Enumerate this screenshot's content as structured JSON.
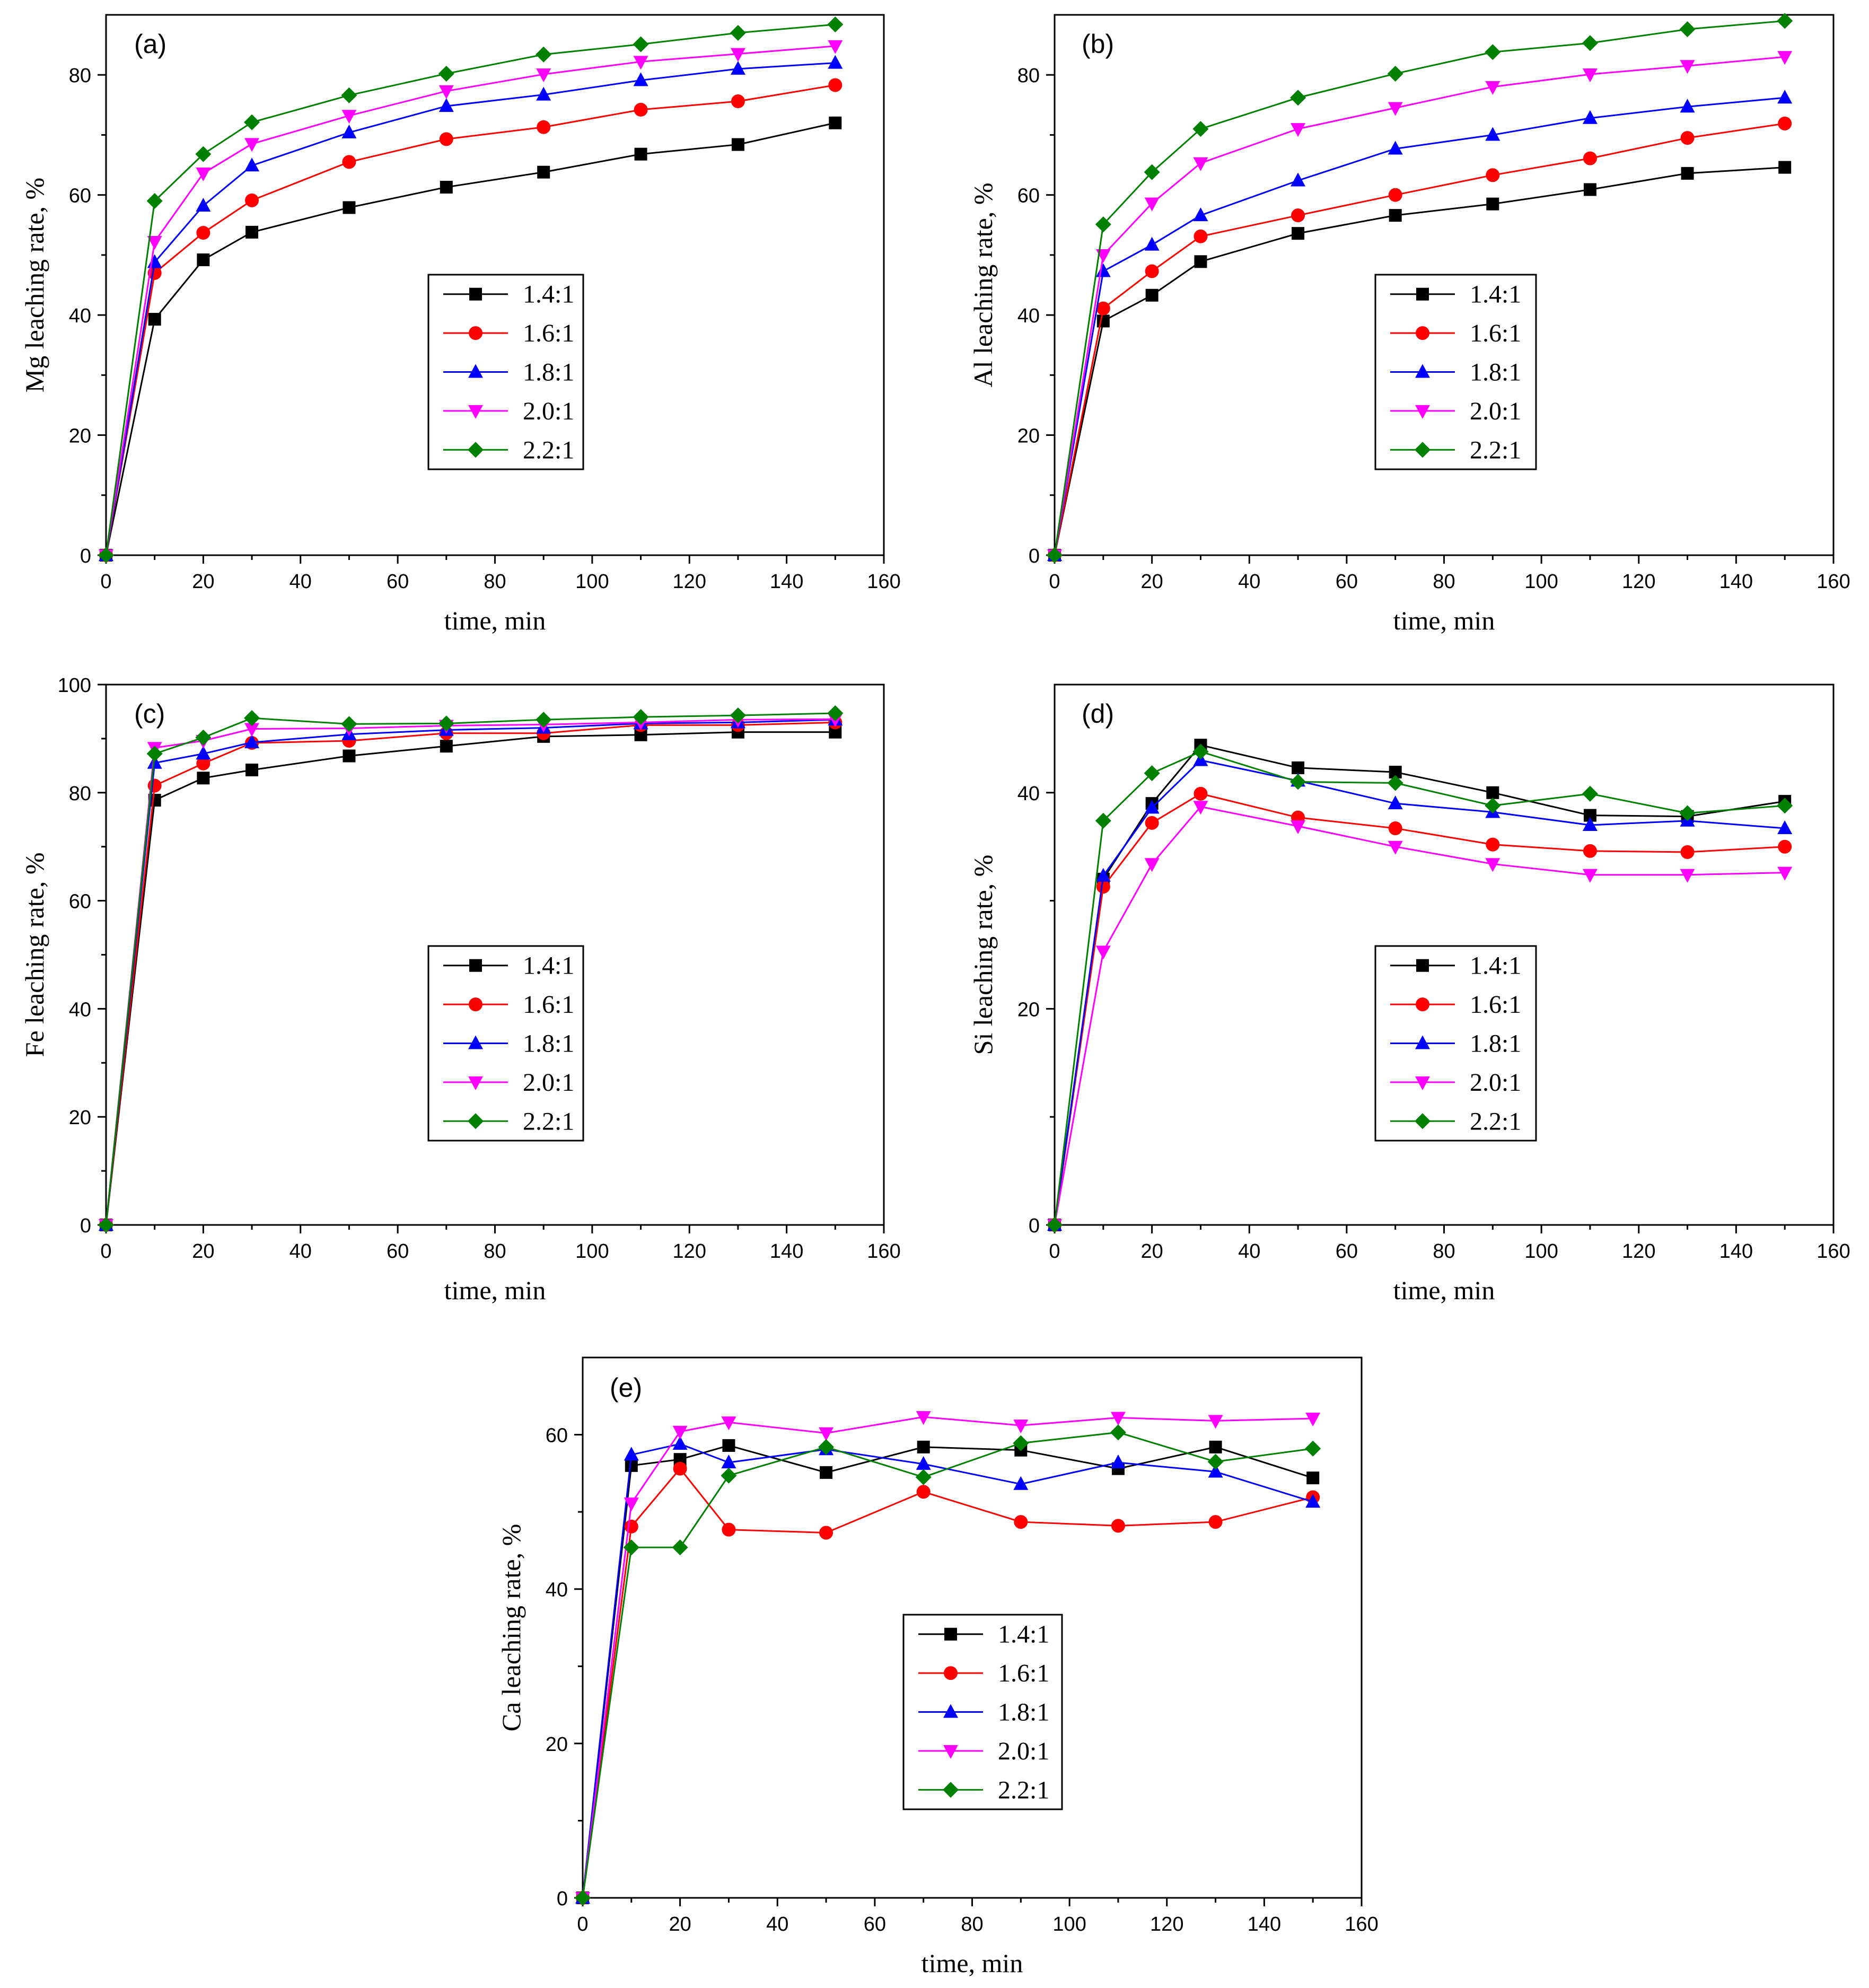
{
  "chart_data": [
    {
      "panel": "(a)",
      "type": "line",
      "xlabel": "time, min",
      "ylabel": "Mg leaching rate, %",
      "xlim": [
        0,
        160
      ],
      "ylim": [
        0,
        90
      ],
      "xticks": [
        0,
        20,
        40,
        60,
        80,
        100,
        120,
        140,
        160
      ],
      "yticks": [
        0,
        20,
        40,
        60,
        80
      ],
      "x": [
        0,
        10,
        20,
        30,
        50,
        70,
        90,
        110,
        130,
        150
      ],
      "series": [
        {
          "name": "1.4:1",
          "color": "#000000",
          "marker": "square",
          "values": [
            0,
            39.3,
            49.2,
            53.8,
            57.9,
            61.3,
            63.8,
            66.8,
            68.4,
            72.0
          ]
        },
        {
          "name": "1.6:1",
          "color": "#ff0000",
          "marker": "circle",
          "values": [
            0,
            47.0,
            53.7,
            59.1,
            65.5,
            69.3,
            71.3,
            74.2,
            75.6,
            78.3
          ]
        },
        {
          "name": "1.8:1",
          "color": "#0000ff",
          "marker": "triangle-up",
          "values": [
            0,
            48.8,
            58.2,
            64.9,
            70.4,
            74.8,
            76.7,
            79.1,
            81.0,
            82.0
          ]
        },
        {
          "name": "2.0:1",
          "color": "#ff00ff",
          "marker": "triangle-down",
          "values": [
            0,
            52.2,
            63.6,
            68.5,
            73.2,
            77.3,
            80.1,
            82.2,
            83.5,
            84.8
          ]
        },
        {
          "name": "2.2:1",
          "color": "#008000",
          "marker": "diamond",
          "values": [
            0,
            59.0,
            66.8,
            72.1,
            76.6,
            80.2,
            83.4,
            85.1,
            87.0,
            88.4
          ]
        }
      ]
    },
    {
      "panel": "(b)",
      "type": "line",
      "xlabel": "time, min",
      "ylabel": "Al leaching rate, %",
      "xlim": [
        0,
        160
      ],
      "ylim": [
        0,
        90
      ],
      "xticks": [
        0,
        20,
        40,
        60,
        80,
        100,
        120,
        140,
        160
      ],
      "yticks": [
        0,
        20,
        40,
        60,
        80
      ],
      "x": [
        0,
        10,
        20,
        30,
        50,
        70,
        90,
        110,
        130,
        150
      ],
      "series": [
        {
          "name": "1.4:1",
          "color": "#000000",
          "marker": "square",
          "values": [
            0,
            39.0,
            43.3,
            48.9,
            53.6,
            56.6,
            58.5,
            60.9,
            63.6,
            64.6
          ]
        },
        {
          "name": "1.6:1",
          "color": "#ff0000",
          "marker": "circle",
          "values": [
            0,
            41.1,
            47.3,
            53.1,
            56.6,
            60.0,
            63.3,
            66.1,
            69.5,
            71.9
          ]
        },
        {
          "name": "1.8:1",
          "color": "#0000ff",
          "marker": "triangle-up",
          "values": [
            0,
            47.3,
            51.7,
            56.6,
            62.4,
            67.7,
            70.0,
            72.8,
            74.7,
            76.2
          ]
        },
        {
          "name": "2.0:1",
          "color": "#ff00ff",
          "marker": "triangle-down",
          "values": [
            0,
            50.0,
            58.6,
            65.3,
            71.0,
            74.5,
            78.0,
            80.1,
            81.5,
            83.0
          ]
        },
        {
          "name": "2.2:1",
          "color": "#008000",
          "marker": "diamond",
          "values": [
            0,
            55.1,
            63.8,
            71.0,
            76.2,
            80.2,
            83.8,
            85.3,
            87.6,
            89.0
          ]
        }
      ]
    },
    {
      "panel": "(c)",
      "type": "line",
      "xlabel": "time, min",
      "ylabel": "Fe leaching rate, %",
      "xlim": [
        0,
        160
      ],
      "ylim": [
        0,
        100
      ],
      "xticks": [
        0,
        20,
        40,
        60,
        80,
        100,
        120,
        140,
        160
      ],
      "yticks": [
        0,
        20,
        40,
        60,
        80,
        100
      ],
      "x": [
        0,
        10,
        20,
        30,
        50,
        70,
        90,
        110,
        130,
        150
      ],
      "series": [
        {
          "name": "1.4:1",
          "color": "#000000",
          "marker": "square",
          "values": [
            0,
            78.6,
            82.7,
            84.2,
            86.8,
            88.6,
            90.4,
            90.7,
            91.2,
            91.2
          ]
        },
        {
          "name": "1.6:1",
          "color": "#ff0000",
          "marker": "circle",
          "values": [
            0,
            81.3,
            85.4,
            89.2,
            89.6,
            91.0,
            91.0,
            92.5,
            92.5,
            93.0
          ]
        },
        {
          "name": "1.8:1",
          "color": "#0000ff",
          "marker": "triangle-up",
          "values": [
            0,
            85.5,
            87.2,
            89.3,
            90.8,
            91.6,
            92.0,
            92.8,
            93.0,
            93.5
          ]
        },
        {
          "name": "2.0:1",
          "color": "#ff00ff",
          "marker": "triangle-down",
          "values": [
            0,
            88.3,
            89.6,
            91.8,
            91.9,
            92.4,
            92.6,
            93.0,
            93.5,
            93.6
          ]
        },
        {
          "name": "2.2:1",
          "color": "#008000",
          "marker": "diamond",
          "values": [
            0,
            87.2,
            90.2,
            93.8,
            92.7,
            92.8,
            93.5,
            94.0,
            94.3,
            94.7
          ]
        }
      ]
    },
    {
      "panel": "(d)",
      "type": "line",
      "xlabel": "time, min",
      "ylabel": "Si leaching rate, %",
      "xlim": [
        0,
        160
      ],
      "ylim": [
        0,
        50
      ],
      "xticks": [
        0,
        20,
        40,
        60,
        80,
        100,
        120,
        140,
        160
      ],
      "yticks": [
        0,
        20,
        40
      ],
      "x": [
        0,
        10,
        20,
        30,
        50,
        70,
        90,
        110,
        130,
        150
      ],
      "series": [
        {
          "name": "1.4:1",
          "color": "#000000",
          "marker": "square",
          "values": [
            0,
            32.0,
            39.0,
            44.4,
            42.3,
            41.9,
            40.0,
            37.9,
            37.8,
            39.2
          ]
        },
        {
          "name": "1.6:1",
          "color": "#ff0000",
          "marker": "circle",
          "values": [
            0,
            31.3,
            37.2,
            39.9,
            37.7,
            36.7,
            35.2,
            34.6,
            34.5,
            35.0
          ]
        },
        {
          "name": "1.8:1",
          "color": "#0000ff",
          "marker": "triangle-up",
          "values": [
            0,
            32.3,
            38.6,
            43.0,
            41.1,
            39.0,
            38.2,
            37.0,
            37.4,
            36.7
          ]
        },
        {
          "name": "2.0:1",
          "color": "#ff00ff",
          "marker": "triangle-down",
          "values": [
            0,
            25.3,
            33.4,
            38.7,
            36.9,
            35.0,
            33.4,
            32.4,
            32.4,
            32.6
          ]
        },
        {
          "name": "2.2:1",
          "color": "#008000",
          "marker": "diamond",
          "values": [
            0,
            37.4,
            41.8,
            43.8,
            41.0,
            40.9,
            38.8,
            39.9,
            38.1,
            38.8
          ]
        }
      ]
    },
    {
      "panel": "(e)",
      "type": "line",
      "xlabel": "time, min",
      "ylabel": "Ca leaching rate, %",
      "xlim": [
        0,
        160
      ],
      "ylim": [
        0,
        70
      ],
      "xticks": [
        0,
        20,
        40,
        60,
        80,
        100,
        120,
        140,
        160
      ],
      "yticks": [
        0,
        20,
        40,
        60
      ],
      "x": [
        0,
        10,
        20,
        30,
        50,
        70,
        90,
        110,
        130,
        150
      ],
      "series": [
        {
          "name": "1.4:1",
          "color": "#000000",
          "marker": "square",
          "values": [
            0,
            56.0,
            56.8,
            58.6,
            55.1,
            58.4,
            58.0,
            55.6,
            58.4,
            54.4
          ]
        },
        {
          "name": "1.6:1",
          "color": "#ff0000",
          "marker": "circle",
          "values": [
            0,
            48.1,
            55.6,
            47.7,
            47.3,
            52.6,
            48.7,
            48.2,
            48.7,
            51.9
          ]
        },
        {
          "name": "1.8:1",
          "color": "#0000ff",
          "marker": "triangle-up",
          "values": [
            0,
            57.4,
            58.8,
            56.4,
            58.1,
            56.2,
            53.6,
            56.4,
            55.2,
            51.3
          ]
        },
        {
          "name": "2.0:1",
          "color": "#ff00ff",
          "marker": "triangle-down",
          "values": [
            0,
            51.1,
            60.4,
            61.6,
            60.2,
            62.3,
            61.2,
            62.2,
            61.8,
            62.1
          ]
        },
        {
          "name": "2.2:1",
          "color": "#008000",
          "marker": "diamond",
          "values": [
            0,
            45.4,
            45.4,
            54.7,
            58.4,
            54.5,
            58.9,
            60.3,
            56.5,
            58.2
          ]
        }
      ]
    }
  ]
}
